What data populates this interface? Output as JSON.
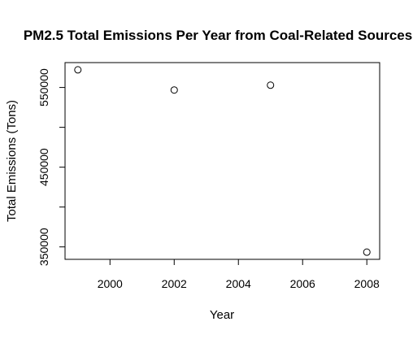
{
  "chart_data": {
    "type": "scatter",
    "title": "PM2.5 Total Emissions Per Year from Coal-Related Sources",
    "xlabel": "Year",
    "ylabel": "Total Emissions (Tons)",
    "x": [
      1999,
      2002,
      2005,
      2008
    ],
    "y": [
      572126,
      546789,
      552881,
      343432
    ],
    "xlim": [
      1998.6,
      2008.4
    ],
    "ylim": [
      334400,
      581200
    ],
    "x_ticks": [
      2000,
      2002,
      2004,
      2006,
      2008
    ],
    "x_tick_labels": [
      "2000",
      "2002",
      "2004",
      "2006",
      "2008"
    ],
    "y_ticks": [
      350000,
      400000,
      450000,
      500000,
      550000
    ],
    "y_tick_labels": [
      "350000",
      "",
      "450000",
      "",
      "550000"
    ],
    "marker": "open-circle",
    "marker_color": "#000000",
    "grid": false,
    "legend": false
  }
}
